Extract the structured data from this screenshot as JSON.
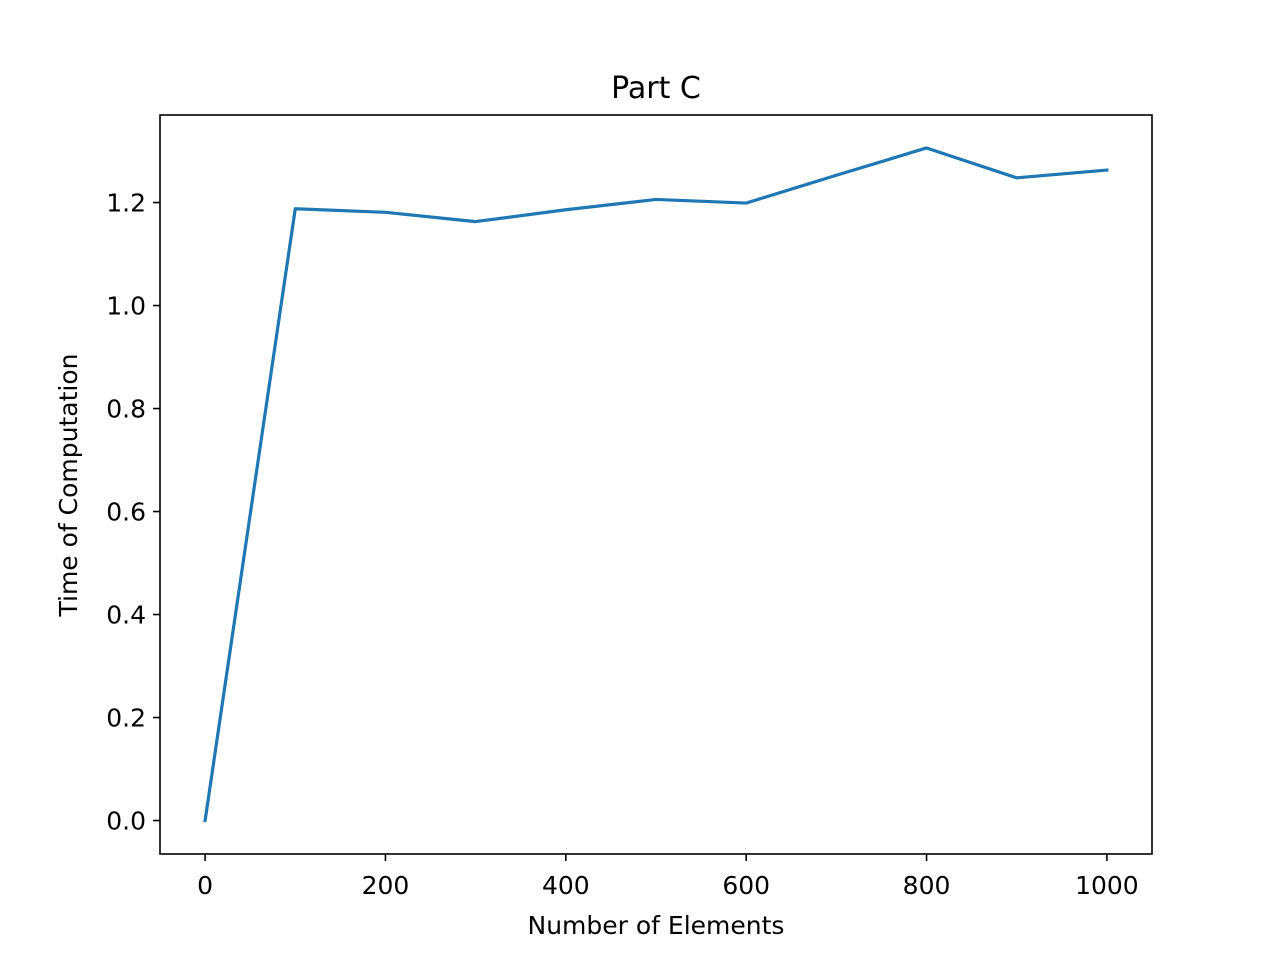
{
  "chart_data": {
    "type": "line",
    "title": "Part C",
    "xlabel": "Number of Elements",
    "ylabel": "Time of Computation",
    "xlim": [
      -50,
      1050
    ],
    "ylim": [
      -0.065,
      1.37
    ],
    "xticks": [
      0,
      200,
      400,
      600,
      800,
      1000
    ],
    "xtick_labels": [
      "0",
      "200",
      "400",
      "600",
      "800",
      "1000"
    ],
    "yticks": [
      0.0,
      0.2,
      0.4,
      0.6,
      0.8,
      1.0,
      1.2
    ],
    "ytick_labels": [
      "0.0",
      "0.2",
      "0.4",
      "0.6",
      "0.8",
      "1.0",
      "1.2"
    ],
    "grid": false,
    "series": [
      {
        "color": "#1f77b4",
        "x": [
          0,
          100,
          200,
          300,
          400,
          500,
          600,
          700,
          800,
          900,
          1000
        ],
        "y": [
          0.0,
          1.188,
          1.181,
          1.163,
          1.186,
          1.206,
          1.199,
          1.253,
          1.306,
          1.248,
          1.263
        ]
      }
    ]
  }
}
